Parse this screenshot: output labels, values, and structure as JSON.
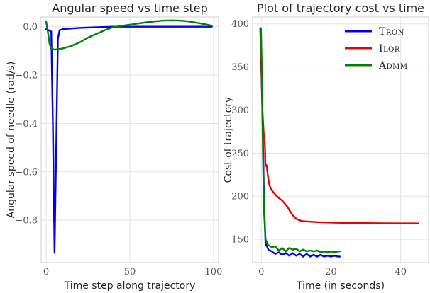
{
  "chart_data": [
    {
      "type": "line",
      "title": "Angular speed vs time step",
      "xlabel": "Time step along trajectory",
      "ylabel": "Angular speed of needle (rad/s)",
      "xlim": [
        -3,
        103
      ],
      "ylim": [
        -0.975,
        0.04
      ],
      "xticks": [
        0,
        50,
        100
      ],
      "xtick_labels": [
        "0",
        "50",
        "100"
      ],
      "yticks": [
        0.0,
        -0.2,
        -0.4,
        -0.6,
        -0.8
      ],
      "ytick_labels": [
        "0.0",
        "−0.2",
        "−0.4",
        "−0.6",
        "−0.8"
      ],
      "grid": true,
      "series": [
        {
          "color": "#0000ee",
          "x": [
            0,
            3,
            4,
            5,
            6,
            7,
            8,
            10,
            20,
            40,
            60,
            80,
            99
          ],
          "y": [
            -0.01,
            -0.02,
            -0.4,
            -0.935,
            -0.5,
            -0.05,
            -0.015,
            -0.01,
            -0.005,
            0,
            0,
            0,
            0
          ]
        },
        {
          "color": "#008000",
          "x": [
            0,
            1,
            2,
            3,
            5,
            10,
            15,
            20,
            25,
            30,
            35,
            40,
            45,
            50,
            55,
            60,
            65,
            70,
            75,
            80,
            85,
            90,
            95,
            99
          ],
          "y": [
            0.02,
            -0.02,
            -0.07,
            -0.09,
            -0.095,
            -0.09,
            -0.08,
            -0.065,
            -0.045,
            -0.03,
            -0.015,
            -0.002,
            0.003,
            0.008,
            0.013,
            0.018,
            0.022,
            0.025,
            0.026,
            0.025,
            0.022,
            0.016,
            0.01,
            0.004
          ]
        }
      ]
    },
    {
      "type": "line",
      "title": "Plot of trajectory cost vs time",
      "xlabel": "Time (in seconds)",
      "ylabel": "Cost of trajectory",
      "xlim": [
        -2.5,
        48
      ],
      "ylim": [
        123,
        408
      ],
      "xticks": [
        0,
        20,
        40
      ],
      "xtick_labels": [
        "0",
        "20",
        "40"
      ],
      "yticks": [
        150,
        200,
        250,
        300,
        350,
        400
      ],
      "ytick_labels": [
        "150",
        "200",
        "250",
        "300",
        "350",
        "400"
      ],
      "grid": true,
      "legend": "top-right",
      "series": [
        {
          "name": "Tron",
          "color": "#0000ee",
          "x": [
            -0.3,
            0.3,
            0.8,
            1.2,
            1.6,
            2,
            3,
            4,
            5,
            6,
            7,
            8,
            9,
            10,
            11,
            12,
            13,
            14,
            15,
            16,
            17,
            18,
            19,
            20,
            21,
            22,
            22.5
          ],
          "y": [
            395,
            300,
            190,
            145,
            142,
            138,
            136,
            133,
            135,
            132,
            134,
            131,
            134,
            131,
            133,
            130,
            133,
            130,
            132,
            130,
            132,
            130,
            131,
            130,
            131,
            130,
            130
          ]
        },
        {
          "name": "Ilqr",
          "color": "#ee0000",
          "x": [
            -0.2,
            0.3,
            0.7,
            1,
            1.2,
            1.5,
            2,
            2.3,
            3,
            4,
            5,
            6,
            7,
            7.5,
            8,
            9,
            10,
            11,
            12,
            14,
            16,
            20,
            25,
            30,
            35,
            40,
            45
          ],
          "y": [
            395,
            300,
            272,
            262,
            235,
            236,
            220,
            213,
            207,
            202,
            198,
            195,
            190,
            188,
            184,
            178,
            174,
            172,
            171,
            170.5,
            170,
            169.5,
            169,
            168.8,
            168.6,
            168.5,
            168.5
          ]
        },
        {
          "name": "Admm",
          "color": "#008000",
          "x": [
            -0.1,
            0.2,
            0.5,
            0.8,
            1.2,
            2,
            3,
            4,
            5,
            6,
            7,
            8,
            9,
            10,
            11,
            12,
            13,
            14,
            15,
            16,
            17,
            18,
            19,
            20,
            21,
            22,
            22.5
          ],
          "y": [
            395,
            330,
            240,
            180,
            150,
            143,
            141,
            142,
            137,
            140,
            136,
            140,
            138,
            139,
            136,
            138,
            136,
            137,
            136,
            137,
            135,
            136,
            135,
            136,
            135,
            136,
            136
          ]
        }
      ]
    }
  ]
}
